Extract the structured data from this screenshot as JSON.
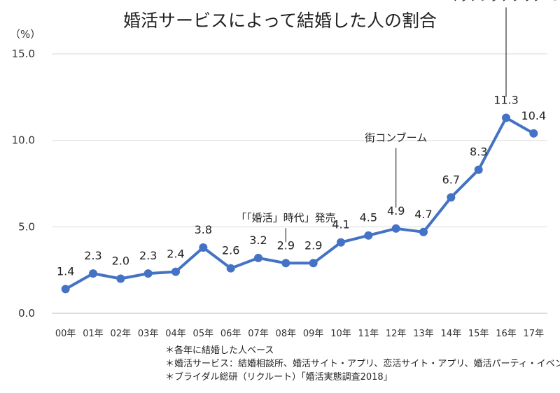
{
  "chart_data": {
    "type": "line",
    "title": "婚活サービスによって結婚した人の割合",
    "ylabel": "（%）",
    "ylim": [
      0,
      15
    ],
    "yticks": [
      "0.0",
      "5.0",
      "10.0",
      "15.0"
    ],
    "categories": [
      "00年",
      "01年",
      "02年",
      "03年",
      "04年",
      "05年",
      "06年",
      "07年",
      "08年",
      "09年",
      "10年",
      "11年",
      "12年",
      "13年",
      "14年",
      "15年",
      "16年",
      "17年"
    ],
    "series": [
      {
        "values": [
          1.4,
          2.3,
          2.0,
          2.3,
          2.4,
          3.8,
          2.6,
          3.2,
          2.9,
          2.9,
          4.1,
          4.5,
          4.9,
          4.7,
          6.7,
          8.3,
          11.3,
          10.4
        ]
      }
    ],
    "data_labels": [
      "1.4",
      "2.3",
      "2.0",
      "2.3",
      "2.4",
      "3.8",
      "2.6",
      "3.2",
      "2.9",
      "2.9",
      "4.1",
      "4.5",
      "4.9",
      "4.7",
      "6.7",
      "8.3",
      "11.3",
      "10.4"
    ],
    "annotations": [
      {
        "text": "「「婚活」時代」発売",
        "index": 8
      },
      {
        "text": "街コンブーム",
        "index": 12
      },
      {
        "text": "マッチングアプリブーム",
        "index": 16
      }
    ],
    "grid": true,
    "color": "#4472c4"
  },
  "notes": [
    "＊各年に結婚した人ベース",
    "＊婚活サービス：結婚相談所、婚活サイト・アプリ、恋活サイト・アプリ、婚活パーティ・イベント",
    "＊ブライダル総研（リクルート）「婚活実態調査2018」"
  ]
}
